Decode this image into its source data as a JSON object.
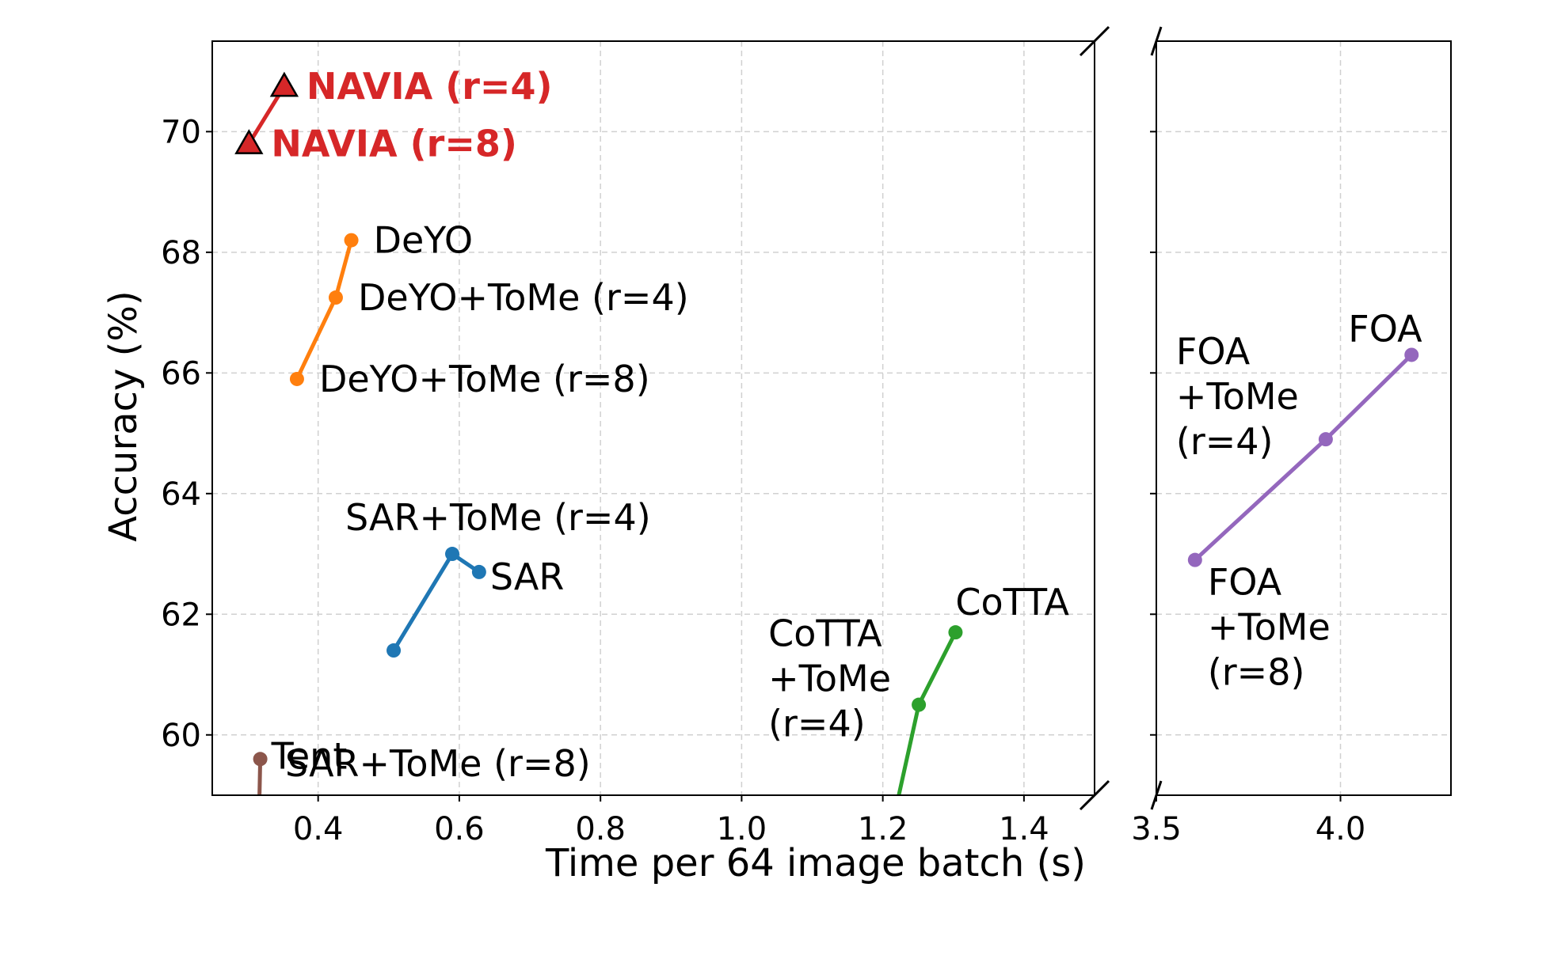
{
  "chart_data": {
    "type": "line",
    "xlabel": "Time per 64 image batch (s)",
    "ylabel": "Accuracy (%)",
    "ylim": [
      59,
      71.5
    ],
    "yticks": [
      "60",
      "62",
      "64",
      "66",
      "68",
      "70"
    ],
    "yticks_values": [
      60,
      62,
      64,
      66,
      68,
      70
    ],
    "grid": true,
    "broken_x_axis": true,
    "x_segments": [
      {
        "xlim": [
          0.25,
          1.5
        ],
        "ticks": [
          0.4,
          0.6,
          0.8,
          1.0,
          1.2,
          1.4
        ],
        "tick_labels": [
          "0.4",
          "0.6",
          "0.8",
          "1.0",
          "1.2",
          "1.4"
        ]
      },
      {
        "xlim": [
          3.5,
          4.3
        ],
        "ticks": [
          3.5,
          4.0
        ],
        "tick_labels": [
          "3.5",
          "4.0"
        ]
      }
    ],
    "series": [
      {
        "color": "#d62728",
        "marker": "triangle",
        "segment": 0,
        "bold_labels": true,
        "points": [
          {
            "x": 0.352,
            "y": 70.75,
            "label": "NAVIA (r=4)"
          },
          {
            "x": 0.302,
            "y": 69.8,
            "label": "NAVIA (r=8)"
          }
        ]
      },
      {
        "color": "#ff7f0e",
        "marker": "circle",
        "segment": 0,
        "points": [
          {
            "x": 0.447,
            "y": 68.2,
            "label": "DeYO"
          },
          {
            "x": 0.425,
            "y": 67.25,
            "label": "DeYO+ToMe (r=4)"
          },
          {
            "x": 0.37,
            "y": 65.9,
            "label": "DeYO+ToMe (r=8)"
          }
        ]
      },
      {
        "color": "#1f77b4",
        "marker": "circle",
        "segment": 0,
        "points": [
          {
            "x": 0.628,
            "y": 62.7,
            "label": "SAR"
          },
          {
            "x": 0.59,
            "y": 63.0,
            "label": "SAR+ToMe (r=4)"
          },
          {
            "x": 0.507,
            "y": 61.4,
            "label": "SAR+ToMe (r=8)"
          }
        ]
      },
      {
        "color": "#2ca02c",
        "marker": "circle",
        "segment": 0,
        "points": [
          {
            "x": 1.303,
            "y": 61.7,
            "label": "CoTTA"
          },
          {
            "x": 1.251,
            "y": 60.5,
            "label": "CoTTA\n+ToMe\n(r=4)"
          },
          {
            "x": 1.2,
            "y": 57.8,
            "label": ""
          }
        ]
      },
      {
        "color": "#8c564b",
        "marker": "circle",
        "segment": 0,
        "points": [
          {
            "x": 0.318,
            "y": 59.6,
            "label": "Tent"
          },
          {
            "x": 0.316,
            "y": 58.5,
            "label": ""
          }
        ]
      },
      {
        "color": "#9467bd",
        "marker": "circle",
        "segment": 1,
        "points": [
          {
            "x": 4.193,
            "y": 66.3,
            "label": "FOA"
          },
          {
            "x": 3.96,
            "y": 64.9,
            "label": "FOA\n+ToMe\n(r=4)"
          },
          {
            "x": 3.605,
            "y": 62.9,
            "label": "FOA\n+ToMe\n(r=8)"
          }
        ]
      }
    ]
  }
}
